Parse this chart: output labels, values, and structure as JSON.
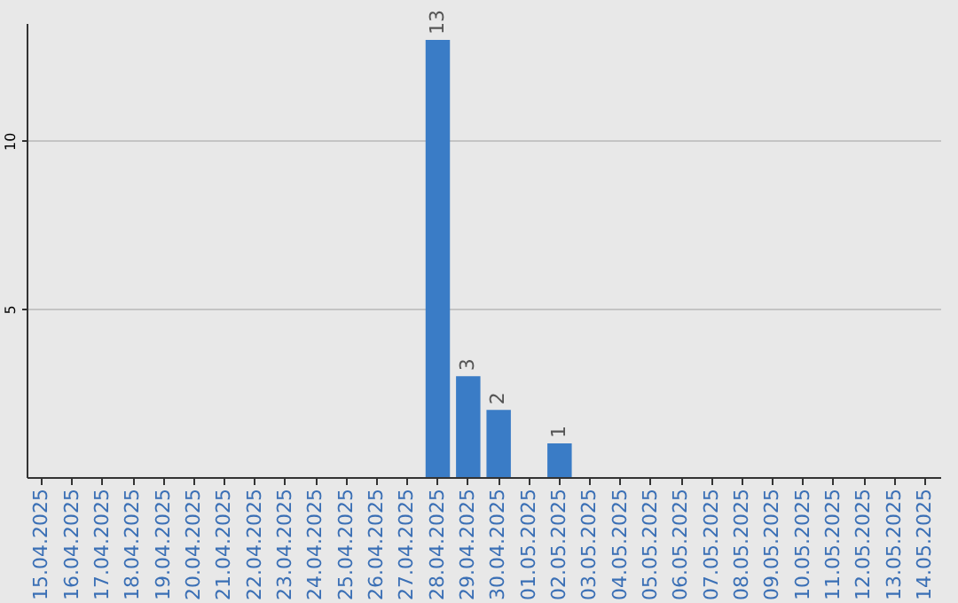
{
  "chart_data": {
    "type": "bar",
    "categories": [
      "15.04.2025",
      "16.04.2025",
      "17.04.2025",
      "18.04.2025",
      "19.04.2025",
      "20.04.2025",
      "21.04.2025",
      "22.04.2025",
      "23.04.2025",
      "24.04.2025",
      "25.04.2025",
      "26.04.2025",
      "27.04.2025",
      "28.04.2025",
      "29.04.2025",
      "30.04.2025",
      "01.05.2025",
      "02.05.2025",
      "03.05.2025",
      "04.05.2025",
      "05.05.2025",
      "06.05.2025",
      "07.05.2025",
      "08.05.2025",
      "09.05.2025",
      "10.05.2025",
      "11.05.2025",
      "12.05.2025",
      "13.05.2025",
      "14.05.2025"
    ],
    "values": [
      0,
      0,
      0,
      0,
      0,
      0,
      0,
      0,
      0,
      0,
      0,
      0,
      0,
      13,
      3,
      2,
      0,
      1,
      0,
      0,
      0,
      0,
      0,
      0,
      0,
      0,
      0,
      0,
      0,
      0
    ],
    "value_labels": [
      null,
      null,
      null,
      null,
      null,
      null,
      null,
      null,
      null,
      null,
      null,
      null,
      null,
      "13",
      "3",
      "2",
      null,
      "1",
      null,
      null,
      null,
      null,
      null,
      null,
      null,
      null,
      null,
      null,
      null,
      null
    ],
    "color": "#3a7cc6",
    "ylim": [
      0,
      13.5
    ],
    "yticks": [
      5,
      10
    ],
    "grid": "y"
  }
}
